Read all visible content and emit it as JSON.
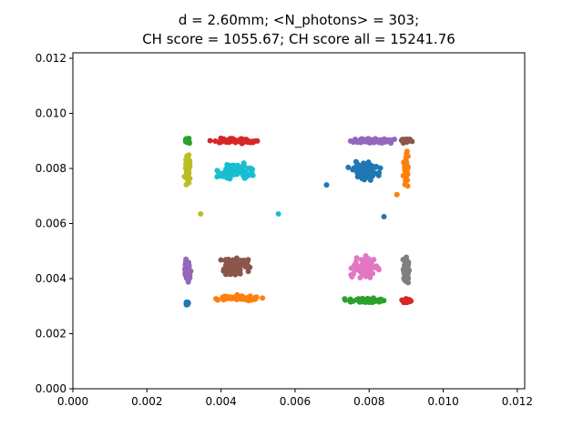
{
  "chart_data": {
    "type": "scatter",
    "title": "d = 2.60mm; <N_photons> = 303;",
    "subtitle": "CH score = 1055.67; CH score all = 15241.76",
    "xlabel": "",
    "ylabel": "",
    "xlim": [
      0.0,
      0.0122
    ],
    "ylim": [
      0.0,
      0.0122
    ],
    "x_ticks": [
      "0.000",
      "0.002",
      "0.004",
      "0.006",
      "0.008",
      "0.010",
      "0.012"
    ],
    "y_ticks": [
      "0.000",
      "0.002",
      "0.004",
      "0.006",
      "0.008",
      "0.010",
      "0.012"
    ],
    "grid": false,
    "legend": "none",
    "clusters": [
      {
        "color": "#1f77b4",
        "center": [
          0.0079,
          0.0079
        ],
        "spread": [
          0.0007,
          0.0006
        ],
        "n": 80
      },
      {
        "color": "#ff7f0e",
        "center": [
          0.009,
          0.008
        ],
        "spread": [
          0.00012,
          0.001
        ],
        "n": 55
      },
      {
        "color": "#2ca02c",
        "center": [
          0.0031,
          0.009
        ],
        "spread": [
          0.00012,
          0.00015
        ],
        "n": 35
      },
      {
        "color": "#d62728",
        "center": [
          0.0044,
          0.009
        ],
        "spread": [
          0.0011,
          0.00015
        ],
        "n": 75
      },
      {
        "color": "#9467bd",
        "center": [
          0.008,
          0.009
        ],
        "spread": [
          0.0011,
          0.00015
        ],
        "n": 90
      },
      {
        "color": "#8c564b",
        "center": [
          0.009,
          0.009
        ],
        "spread": [
          0.00025,
          0.00015
        ],
        "n": 40
      },
      {
        "color": "#bcbd22",
        "center": [
          0.0031,
          0.008
        ],
        "spread": [
          0.00015,
          0.001
        ],
        "n": 55
      },
      {
        "color": "#17becf",
        "center": [
          0.0044,
          0.0079
        ],
        "spread": [
          0.0008,
          0.0006
        ],
        "n": 80
      },
      {
        "color": "#9467bd",
        "center": [
          0.0031,
          0.0043
        ],
        "spread": [
          0.00015,
          0.0009
        ],
        "n": 60
      },
      {
        "color": "#8c564b",
        "center": [
          0.0044,
          0.0044
        ],
        "spread": [
          0.0008,
          0.0007
        ],
        "n": 80
      },
      {
        "color": "#ff7f0e",
        "center": [
          0.0044,
          0.0033
        ],
        "spread": [
          0.0011,
          0.00015
        ],
        "n": 85
      },
      {
        "color": "#1f77b4",
        "center": [
          0.0031,
          0.0031
        ],
        "spread": [
          8e-05,
          8e-05
        ],
        "n": 12
      },
      {
        "color": "#e377c2",
        "center": [
          0.0079,
          0.0044
        ],
        "spread": [
          0.0007,
          0.0007
        ],
        "n": 80
      },
      {
        "color": "#7f7f7f",
        "center": [
          0.009,
          0.0043
        ],
        "spread": [
          0.00015,
          0.0009
        ],
        "n": 60
      },
      {
        "color": "#2ca02c",
        "center": [
          0.0079,
          0.0032
        ],
        "spread": [
          0.0009,
          0.00015
        ],
        "n": 80
      },
      {
        "color": "#d62728",
        "center": [
          0.009,
          0.0032
        ],
        "spread": [
          0.00018,
          0.00015
        ],
        "n": 40
      }
    ],
    "outliers": [
      {
        "color": "#bcbd22",
        "x": 0.00345,
        "y": 0.00635
      },
      {
        "color": "#17becf",
        "x": 0.00555,
        "y": 0.00635
      },
      {
        "color": "#1f77b4",
        "x": 0.0084,
        "y": 0.00625
      },
      {
        "color": "#1f77b4",
        "x": 0.00685,
        "y": 0.0074
      },
      {
        "color": "#ff7f0e",
        "x": 0.00875,
        "y": 0.00705
      }
    ]
  }
}
